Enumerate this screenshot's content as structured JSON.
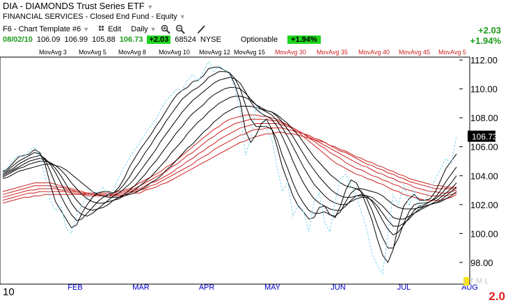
{
  "header": {
    "symbol_title": "DIA - DIAMONDS Trust Series ETF",
    "classification": "FINANCIAL SERVICES - Closed End Fund - Equity",
    "template": "F6 - Chart Template #6",
    "edit_label": "Edit",
    "period_label": "Daily"
  },
  "quote": {
    "date": "08/02/10",
    "open": "106.09",
    "high": "106.99",
    "low": "105.88",
    "last": "106.73",
    "change": "+2.03",
    "volume": "68524",
    "exchange": "NYSE",
    "optionable_label": "Optionable",
    "change_pct": "+1.94%"
  },
  "summary": {
    "change_abs": "+2.03",
    "change_pct": "+1.94%"
  },
  "bottom": {
    "year_label": "10",
    "scale_letters": [
      "L",
      "T",
      "M",
      "L"
    ],
    "scale_value": "2.0"
  },
  "chart_data": {
    "type": "line",
    "last_price_label": "106.73",
    "ylim": [
      96.5,
      112.2
    ],
    "y_ticks": [
      "98.00",
      "100.00",
      "102.00",
      "104.00",
      "106.00",
      "108.00",
      "110.00",
      "112.00"
    ],
    "x_ticks": [
      "FEB",
      "MAR",
      "APR",
      "MAY",
      "JUN",
      "JUL",
      "AUG"
    ],
    "short_ma_labels": [
      "MovAvg 3",
      "MovAvg 5",
      "MovAvg 8",
      "MovAvg 10",
      "MovAvg 12",
      "MovAvg 15"
    ],
    "long_ma_labels": [
      "MovAvg 30",
      "MovAvg 35",
      "MovAvg 40",
      "MovAvg 45",
      "MovAvg 5"
    ],
    "colors": {
      "price": "#7fd6f0",
      "short_ma": "#000000",
      "long_ma": "#cc1f1f",
      "long_ma_label": "#cc1f1f",
      "axis_label": "#0000cc"
    },
    "price": [
      104.2,
      104.6,
      105.1,
      105.4,
      105.3,
      105.7,
      106.0,
      105.4,
      103.9,
      102.3,
      101.6,
      101.9,
      100.4,
      100.0,
      101.2,
      102.0,
      102.5,
      102.9,
      102.8,
      103.2,
      102.6,
      103.0,
      103.9,
      104.6,
      105.2,
      105.8,
      106.3,
      106.9,
      107.4,
      107.9,
      108.6,
      109.2,
      109.6,
      110.0,
      109.9,
      110.6,
      111.0,
      110.5,
      111.2,
      111.9,
      111.2,
      111.6,
      111.3,
      111.0,
      110.0,
      108.5,
      105.4,
      106.6,
      108.8,
      108.4,
      107.2,
      106.5,
      104.6,
      102.9,
      103.6,
      101.2,
      102.0,
      101.5,
      100.1,
      102.2,
      102.8,
      100.8,
      100.1,
      102.2,
      103.8,
      104.1,
      103.3,
      102.6,
      101.4,
      100.3,
      98.6,
      97.8,
      97.2,
      99.9,
      102.7,
      102.0,
      103.4,
      101.9,
      103.0,
      101.7,
      102.3,
      103.0,
      103.8,
      104.5,
      105.2,
      104.8,
      106.73
    ],
    "ma_short": [
      [
        104.3,
        104.5,
        104.9,
        105.3,
        105.4,
        105.5,
        105.8,
        105.6,
        104.8,
        103.4,
        102.2,
        101.6,
        101.0,
        100.4,
        100.6,
        101.4,
        102.0,
        102.5,
        102.8,
        102.9,
        102.9,
        102.8,
        103.2,
        103.8,
        104.6,
        105.2,
        105.8,
        106.3,
        106.8,
        107.4,
        107.9,
        108.5,
        109.1,
        109.6,
        109.9,
        110.1,
        110.5,
        110.6,
        110.9,
        111.4,
        111.5,
        111.5,
        111.3,
        111.1,
        110.3,
        109.1,
        107.1,
        106.3,
        106.8,
        107.6,
        107.9,
        107.2,
        106.0,
        104.6,
        103.6,
        102.6,
        101.9,
        101.5,
        101.0,
        101.1,
        101.8,
        101.9,
        101.3,
        101.1,
        101.9,
        103.0,
        103.7,
        103.5,
        102.8,
        101.9,
        100.9,
        99.6,
        98.5,
        98.0,
        98.9,
        100.6,
        101.9,
        102.4,
        102.7,
        102.3,
        102.3,
        102.4,
        102.9,
        103.7,
        104.5,
        105.0,
        105.5
      ],
      [
        104.2,
        104.4,
        104.7,
        105.0,
        105.2,
        105.4,
        105.6,
        105.5,
        105.1,
        104.3,
        103.4,
        102.6,
        101.9,
        101.3,
        100.9,
        101.0,
        101.4,
        101.8,
        102.2,
        102.5,
        102.7,
        102.8,
        103.0,
        103.4,
        103.9,
        104.5,
        105.0,
        105.6,
        106.1,
        106.7,
        107.2,
        107.8,
        108.3,
        108.8,
        109.3,
        109.6,
        109.9,
        110.1,
        110.4,
        110.8,
        111.0,
        111.2,
        111.2,
        111.1,
        110.7,
        110.0,
        108.9,
        107.9,
        107.4,
        107.4,
        107.4,
        107.2,
        106.5,
        105.4,
        104.5,
        103.5,
        102.7,
        102.1,
        101.6,
        101.4,
        101.4,
        101.5,
        101.3,
        101.2,
        101.5,
        102.2,
        102.8,
        103.1,
        102.9,
        102.4,
        101.6,
        100.6,
        99.7,
        99.0,
        99.0,
        99.7,
        100.7,
        101.5,
        102.0,
        102.1,
        102.1,
        102.2,
        102.5,
        103.0,
        103.6,
        104.1,
        104.6
      ],
      [
        104.1,
        104.3,
        104.5,
        104.8,
        105.0,
        105.2,
        105.3,
        105.4,
        105.2,
        104.8,
        104.2,
        103.5,
        102.8,
        102.1,
        101.6,
        101.3,
        101.2,
        101.4,
        101.7,
        102.0,
        102.3,
        102.6,
        102.8,
        103.1,
        103.4,
        103.8,
        104.3,
        104.8,
        105.3,
        105.8,
        106.4,
        106.9,
        107.4,
        107.9,
        108.4,
        108.8,
        109.2,
        109.5,
        109.8,
        110.1,
        110.4,
        110.6,
        110.7,
        110.8,
        110.7,
        110.4,
        109.8,
        109.1,
        108.6,
        108.3,
        108.1,
        107.9,
        107.4,
        106.7,
        105.9,
        105.0,
        104.2,
        103.5,
        102.9,
        102.4,
        102.1,
        101.9,
        101.7,
        101.6,
        101.6,
        101.9,
        102.3,
        102.6,
        102.7,
        102.6,
        102.2,
        101.6,
        100.9,
        100.3,
        99.9,
        100.1,
        100.6,
        101.1,
        101.6,
        101.9,
        102.0,
        102.2,
        102.4,
        102.7,
        103.1,
        103.5,
        104.0
      ],
      [
        104.0,
        104.2,
        104.4,
        104.6,
        104.8,
        105.0,
        105.1,
        105.2,
        105.1,
        104.9,
        104.5,
        104.0,
        103.4,
        102.8,
        102.3,
        101.9,
        101.7,
        101.6,
        101.7,
        101.8,
        102.0,
        102.3,
        102.5,
        102.7,
        103.0,
        103.3,
        103.7,
        104.1,
        104.6,
        105.0,
        105.5,
        106.0,
        106.5,
        107.0,
        107.4,
        107.9,
        108.3,
        108.6,
        108.9,
        109.3,
        109.6,
        109.8,
        110.0,
        110.1,
        110.1,
        110.0,
        109.7,
        109.3,
        108.9,
        108.6,
        108.4,
        108.2,
        107.8,
        107.3,
        106.7,
        106.0,
        105.3,
        104.6,
        104.0,
        103.4,
        103.0,
        102.6,
        102.3,
        102.1,
        102.0,
        102.0,
        102.2,
        102.4,
        102.5,
        102.5,
        102.3,
        101.9,
        101.4,
        100.9,
        100.5,
        100.5,
        100.7,
        101.0,
        101.4,
        101.7,
        101.9,
        102.0,
        102.2,
        102.5,
        102.8,
        103.1,
        103.5
      ],
      [
        103.9,
        104.1,
        104.3,
        104.5,
        104.6,
        104.8,
        104.9,
        105.0,
        105.0,
        104.9,
        104.7,
        104.4,
        104.0,
        103.5,
        103.1,
        102.7,
        102.4,
        102.2,
        102.1,
        102.1,
        102.2,
        102.3,
        102.4,
        102.6,
        102.8,
        103.0,
        103.3,
        103.6,
        103.9,
        104.3,
        104.7,
        105.1,
        105.6,
        106.0,
        106.4,
        106.9,
        107.3,
        107.7,
        108.0,
        108.4,
        108.7,
        109.0,
        109.2,
        109.4,
        109.5,
        109.5,
        109.4,
        109.2,
        108.9,
        108.7,
        108.5,
        108.4,
        108.1,
        107.7,
        107.2,
        106.7,
        106.1,
        105.5,
        104.9,
        104.4,
        103.9,
        103.5,
        103.1,
        102.8,
        102.6,
        102.5,
        102.5,
        102.6,
        102.6,
        102.6,
        102.5,
        102.2,
        101.9,
        101.5,
        101.1,
        101.0,
        101.0,
        101.2,
        101.4,
        101.6,
        101.8,
        102.0,
        102.1,
        102.3,
        102.6,
        102.9,
        103.2
      ],
      [
        103.8,
        103.9,
        104.1,
        104.3,
        104.4,
        104.5,
        104.6,
        104.7,
        104.8,
        104.8,
        104.7,
        104.6,
        104.4,
        104.1,
        103.8,
        103.5,
        103.2,
        102.9,
        102.7,
        102.6,
        102.5,
        102.5,
        102.5,
        102.6,
        102.7,
        102.8,
        103.0,
        103.2,
        103.5,
        103.7,
        104.0,
        104.4,
        104.7,
        105.1,
        105.5,
        105.9,
        106.2,
        106.6,
        107.0,
        107.3,
        107.7,
        108.0,
        108.3,
        108.5,
        108.7,
        108.8,
        108.8,
        108.8,
        108.7,
        108.6,
        108.5,
        108.4,
        108.2,
        107.9,
        107.6,
        107.2,
        106.8,
        106.3,
        105.8,
        105.3,
        104.9,
        104.5,
        104.1,
        103.8,
        103.5,
        103.3,
        103.2,
        103.1,
        103.1,
        103.0,
        102.9,
        102.8,
        102.6,
        102.3,
        102.0,
        101.8,
        101.7,
        101.7,
        101.7,
        101.8,
        101.9,
        102.0,
        102.1,
        102.2,
        102.4,
        102.6,
        102.9
      ]
    ],
    "ma_long": [
      [
        102.9,
        103.0,
        103.1,
        103.2,
        103.3,
        103.4,
        103.5,
        103.5,
        103.5,
        103.5,
        103.4,
        103.3,
        103.2,
        103.1,
        103.0,
        102.9,
        102.8,
        102.8,
        102.8,
        102.8,
        102.8,
        102.8,
        102.9,
        103.0,
        103.1,
        103.3,
        103.5,
        103.7,
        103.9,
        104.1,
        104.3,
        104.6,
        104.8,
        105.1,
        105.4,
        105.7,
        106.0,
        106.3,
        106.6,
        106.9,
        107.2,
        107.4,
        107.7,
        107.9,
        108.0,
        108.1,
        108.2,
        108.2,
        108.2,
        108.1,
        108.1,
        108.0,
        107.9,
        107.7,
        107.5,
        107.2,
        107.0,
        106.7,
        106.4,
        106.1,
        105.8,
        105.5,
        105.2,
        104.9,
        104.7,
        104.5,
        104.3,
        104.1,
        104.0,
        103.8,
        103.7,
        103.5,
        103.4,
        103.2,
        103.0,
        102.9,
        102.7,
        102.6,
        102.5,
        102.4,
        102.3,
        102.3,
        102.3,
        102.3,
        102.4,
        102.5,
        102.7
      ],
      [
        102.7,
        102.8,
        102.9,
        103.0,
        103.1,
        103.2,
        103.3,
        103.3,
        103.3,
        103.3,
        103.2,
        103.2,
        103.1,
        103.0,
        102.9,
        102.8,
        102.8,
        102.7,
        102.7,
        102.7,
        102.7,
        102.7,
        102.8,
        102.9,
        103.0,
        103.1,
        103.3,
        103.5,
        103.7,
        103.9,
        104.1,
        104.3,
        104.6,
        104.8,
        105.1,
        105.4,
        105.6,
        105.9,
        106.2,
        106.5,
        106.7,
        107.0,
        107.2,
        107.4,
        107.6,
        107.7,
        107.8,
        107.9,
        107.9,
        107.9,
        107.9,
        107.8,
        107.8,
        107.6,
        107.5,
        107.3,
        107.1,
        106.9,
        106.6,
        106.4,
        106.1,
        105.9,
        105.6,
        105.4,
        105.2,
        104.9,
        104.7,
        104.5,
        104.4,
        104.2,
        104.0,
        103.9,
        103.7,
        103.6,
        103.4,
        103.3,
        103.1,
        103.0,
        102.9,
        102.8,
        102.7,
        102.6,
        102.6,
        102.6,
        102.6,
        102.7,
        102.8
      ],
      [
        102.5,
        102.6,
        102.7,
        102.8,
        102.9,
        103.0,
        103.0,
        103.1,
        103.1,
        103.1,
        103.1,
        103.0,
        103.0,
        102.9,
        102.9,
        102.8,
        102.7,
        102.7,
        102.7,
        102.6,
        102.6,
        102.7,
        102.7,
        102.8,
        102.9,
        103.0,
        103.1,
        103.3,
        103.5,
        103.6,
        103.8,
        104.0,
        104.2,
        104.5,
        104.7,
        105.0,
        105.2,
        105.5,
        105.7,
        106.0,
        106.2,
        106.5,
        106.7,
        106.9,
        107.1,
        107.3,
        107.4,
        107.5,
        107.6,
        107.6,
        107.6,
        107.6,
        107.6,
        107.5,
        107.4,
        107.3,
        107.1,
        106.9,
        106.7,
        106.5,
        106.3,
        106.1,
        105.9,
        105.7,
        105.5,
        105.3,
        105.1,
        104.9,
        104.7,
        104.6,
        104.4,
        104.2,
        104.1,
        103.9,
        103.8,
        103.6,
        103.5,
        103.4,
        103.2,
        103.1,
        103.0,
        102.9,
        102.9,
        102.8,
        102.8,
        102.9,
        103.0
      ],
      [
        102.3,
        102.4,
        102.5,
        102.6,
        102.7,
        102.8,
        102.8,
        102.9,
        102.9,
        102.9,
        102.9,
        102.9,
        102.9,
        102.8,
        102.8,
        102.7,
        102.7,
        102.7,
        102.6,
        102.6,
        102.6,
        102.6,
        102.6,
        102.7,
        102.8,
        102.9,
        103.0,
        103.1,
        103.3,
        103.4,
        103.6,
        103.8,
        104.0,
        104.2,
        104.4,
        104.6,
        104.8,
        105.1,
        105.3,
        105.5,
        105.8,
        106.0,
        106.2,
        106.4,
        106.6,
        106.8,
        106.9,
        107.1,
        107.2,
        107.2,
        107.3,
        107.3,
        107.3,
        107.3,
        107.2,
        107.1,
        107.0,
        106.9,
        106.8,
        106.6,
        106.5,
        106.3,
        106.1,
        105.9,
        105.7,
        105.6,
        105.4,
        105.2,
        105.0,
        104.8,
        104.7,
        104.5,
        104.4,
        104.2,
        104.1,
        103.9,
        103.8,
        103.6,
        103.5,
        103.4,
        103.3,
        103.2,
        103.1,
        103.1,
        103.1,
        103.1,
        103.1
      ],
      [
        102.1,
        102.2,
        102.3,
        102.4,
        102.5,
        102.5,
        102.6,
        102.6,
        102.7,
        102.7,
        102.7,
        102.7,
        102.7,
        102.7,
        102.7,
        102.7,
        102.6,
        102.6,
        102.6,
        102.6,
        102.6,
        102.6,
        102.6,
        102.6,
        102.7,
        102.8,
        102.8,
        103.0,
        103.1,
        103.2,
        103.4,
        103.5,
        103.7,
        103.9,
        104.1,
        104.3,
        104.5,
        104.7,
        104.9,
        105.1,
        105.3,
        105.5,
        105.7,
        105.9,
        106.1,
        106.3,
        106.4,
        106.6,
        106.7,
        106.8,
        106.9,
        106.9,
        107.0,
        107.0,
        106.9,
        106.9,
        106.8,
        106.7,
        106.6,
        106.5,
        106.4,
        106.3,
        106.1,
        106.0,
        105.8,
        105.7,
        105.5,
        105.3,
        105.2,
        105.0,
        104.9,
        104.7,
        104.6,
        104.4,
        104.3,
        104.1,
        104.0,
        103.8,
        103.7,
        103.6,
        103.5,
        103.4,
        103.3,
        103.3,
        103.2,
        103.2,
        103.2
      ]
    ]
  }
}
